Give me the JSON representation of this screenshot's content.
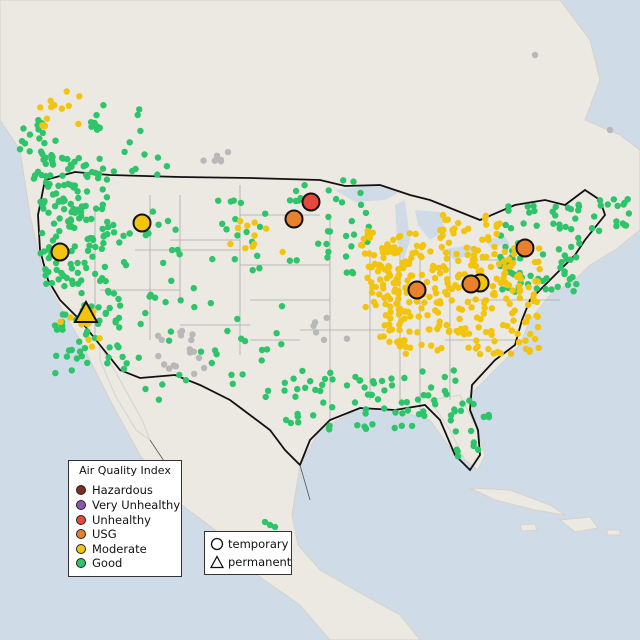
{
  "legend": {
    "title": "Air Quality Index",
    "levels": [
      {
        "label": "Hazardous",
        "color": "#7e2d24"
      },
      {
        "label": "Very Unhealthy",
        "color": "#8b55b0"
      },
      {
        "label": "Unhealthy",
        "color": "#e8473b"
      },
      {
        "label": "USG",
        "color": "#e8802c"
      },
      {
        "label": "Moderate",
        "color": "#f3c40f"
      },
      {
        "label": "Good",
        "color": "#2ec46a"
      }
    ]
  },
  "monitor_types": {
    "temporary_label": "temporary",
    "permanent_label": "permanent"
  },
  "colors": {
    "water": "#cfdbe6",
    "land": "#ece9e3",
    "no_data": "#b8b8b8"
  }
}
